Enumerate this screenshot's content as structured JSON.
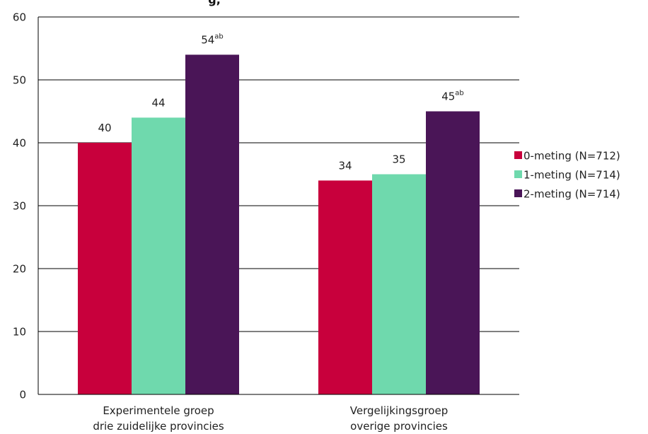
{
  "chart_data": {
    "type": "bar",
    "title_fragment": "g,",
    "categories": [
      "Experimentele groep drie zuidelijke provincies",
      "Vergelijkingsgroep overige provincies"
    ],
    "category_lines": [
      [
        "Experimentele groep",
        "drie zuidelijke provincies"
      ],
      [
        "Vergelijkingsgroep",
        "overige provincies"
      ]
    ],
    "series": [
      {
        "name": "0-meting (N=712)",
        "color": "#c8003c",
        "values": [
          40,
          34
        ],
        "labels": [
          "40",
          "34"
        ],
        "sup": [
          "",
          ""
        ]
      },
      {
        "name": "1-meting (N=714)",
        "color": "#6fd9ad",
        "values": [
          44,
          35
        ],
        "labels": [
          "44",
          "35"
        ],
        "sup": [
          "",
          ""
        ]
      },
      {
        "name": "2-meting (N=714)",
        "color": "#4a1557",
        "values": [
          54,
          45
        ],
        "labels": [
          "54",
          "45"
        ],
        "sup": [
          "ab",
          "ab"
        ]
      }
    ],
    "ylim": [
      0,
      60
    ],
    "yticks": [
      "0",
      "10",
      "20",
      "30",
      "40",
      "50",
      "60"
    ],
    "grid": true,
    "legend_position": "right"
  }
}
